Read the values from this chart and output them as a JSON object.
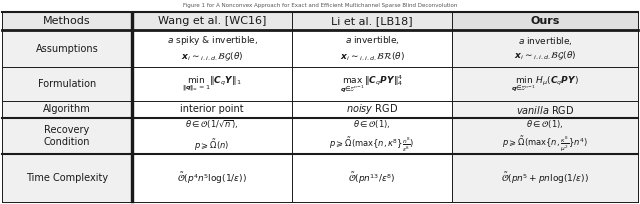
{
  "col_headers": [
    "Methods",
    "Wang et al. [WC16]",
    "Li et al. [LB18]",
    "Ours"
  ],
  "row_headers": [
    "Assumptions",
    "Formulation",
    "Algorithm",
    "Recovery\nCondition",
    "Time Complexity"
  ],
  "background_color": "#ffffff",
  "text_color": "#1a1a1a",
  "border_color": "#1a1a1a",
  "ours_bg": "#e0e0e0",
  "fontsize": 7.0,
  "header_fontsize": 8.0
}
